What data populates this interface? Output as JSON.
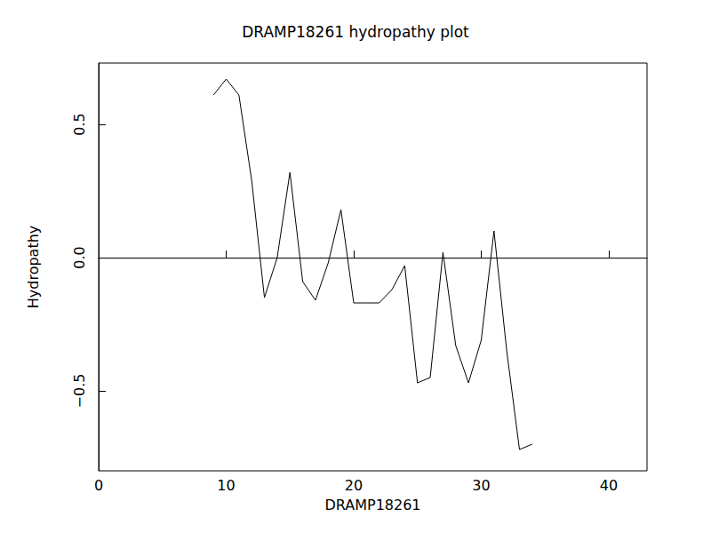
{
  "chart_data": {
    "type": "line",
    "title": "DRAMP18261 hydropathy plot",
    "x_label": "DRAMP18261",
    "y_label": "Hydropathy",
    "x": [
      9,
      10,
      11,
      12,
      13,
      14,
      15,
      16,
      17,
      18,
      19,
      20,
      21,
      22,
      23,
      24,
      25,
      26,
      27,
      28,
      29,
      30,
      31,
      32,
      33,
      34
    ],
    "values": [
      0.61,
      0.67,
      0.61,
      0.29,
      -0.15,
      0.0,
      0.32,
      -0.09,
      -0.16,
      -0.02,
      0.18,
      -0.17,
      -0.17,
      -0.17,
      -0.12,
      -0.03,
      -0.47,
      -0.45,
      0.02,
      -0.33,
      -0.47,
      -0.31,
      0.1,
      -0.35,
      -0.72,
      -0.7
    ],
    "color": "#000000",
    "xlim": [
      0,
      43
    ],
    "xticks": [
      0,
      10,
      20,
      30,
      40
    ],
    "ylim": [
      -0.8,
      0.73
    ],
    "yticks": [
      {
        "value": -0.5,
        "label": "−0.5"
      },
      {
        "value": 0,
        "label": "0.0"
      },
      0.5
    ],
    "grid": false
  }
}
